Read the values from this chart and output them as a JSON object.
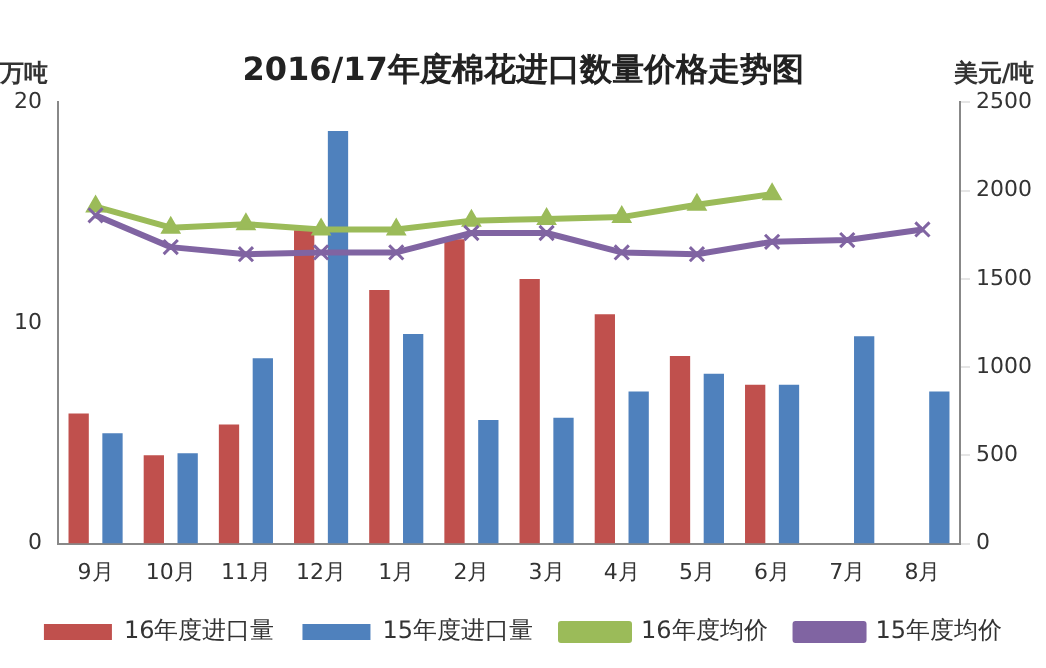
{
  "chart_data": {
    "type": "bar",
    "title": "2016/17年度棉花进口数量价格走势图",
    "ylabel": "万吨",
    "y2label": "美元/吨",
    "categories": [
      "9月",
      "10月",
      "11月",
      "12月",
      "1月",
      "2月",
      "3月",
      "4月",
      "5月",
      "6月",
      "7月",
      "8月"
    ],
    "series": [
      {
        "name": "16年度进口量",
        "color": "#c0504d",
        "values": [
          5.9,
          4.0,
          5.4,
          14.2,
          11.5,
          13.8,
          12.0,
          10.4,
          8.5,
          7.2,
          null,
          null
        ]
      },
      {
        "name": "15年度进口量",
        "color": "#4f81bd",
        "values": [
          5.0,
          4.1,
          8.4,
          18.7,
          9.5,
          5.6,
          5.7,
          6.9,
          7.7,
          7.2,
          9.4,
          6.9
        ]
      },
      {
        "name": "16年度均价",
        "color": "#9bbb59",
        "type": "line",
        "axis": "y2",
        "marker": "triangle",
        "values": [
          1910,
          1790,
          1810,
          1780,
          1780,
          1830,
          1840,
          1850,
          1920,
          1980,
          null,
          null
        ]
      },
      {
        "name": "15年度均价",
        "color": "#8064a2",
        "type": "line",
        "axis": "y2",
        "marker": "cross",
        "values": [
          1860,
          1680,
          1640,
          1650,
          1650,
          1760,
          1760,
          1650,
          1640,
          1710,
          1720,
          1780
        ]
      }
    ],
    "ylim": [
      0,
      20
    ],
    "yticks": [
      0,
      10,
      20
    ],
    "y2lim": [
      0,
      2500
    ],
    "y2ticks": [
      0,
      500,
      1000,
      1500,
      2000,
      2500
    ],
    "grid": false,
    "legend": "bottom"
  }
}
